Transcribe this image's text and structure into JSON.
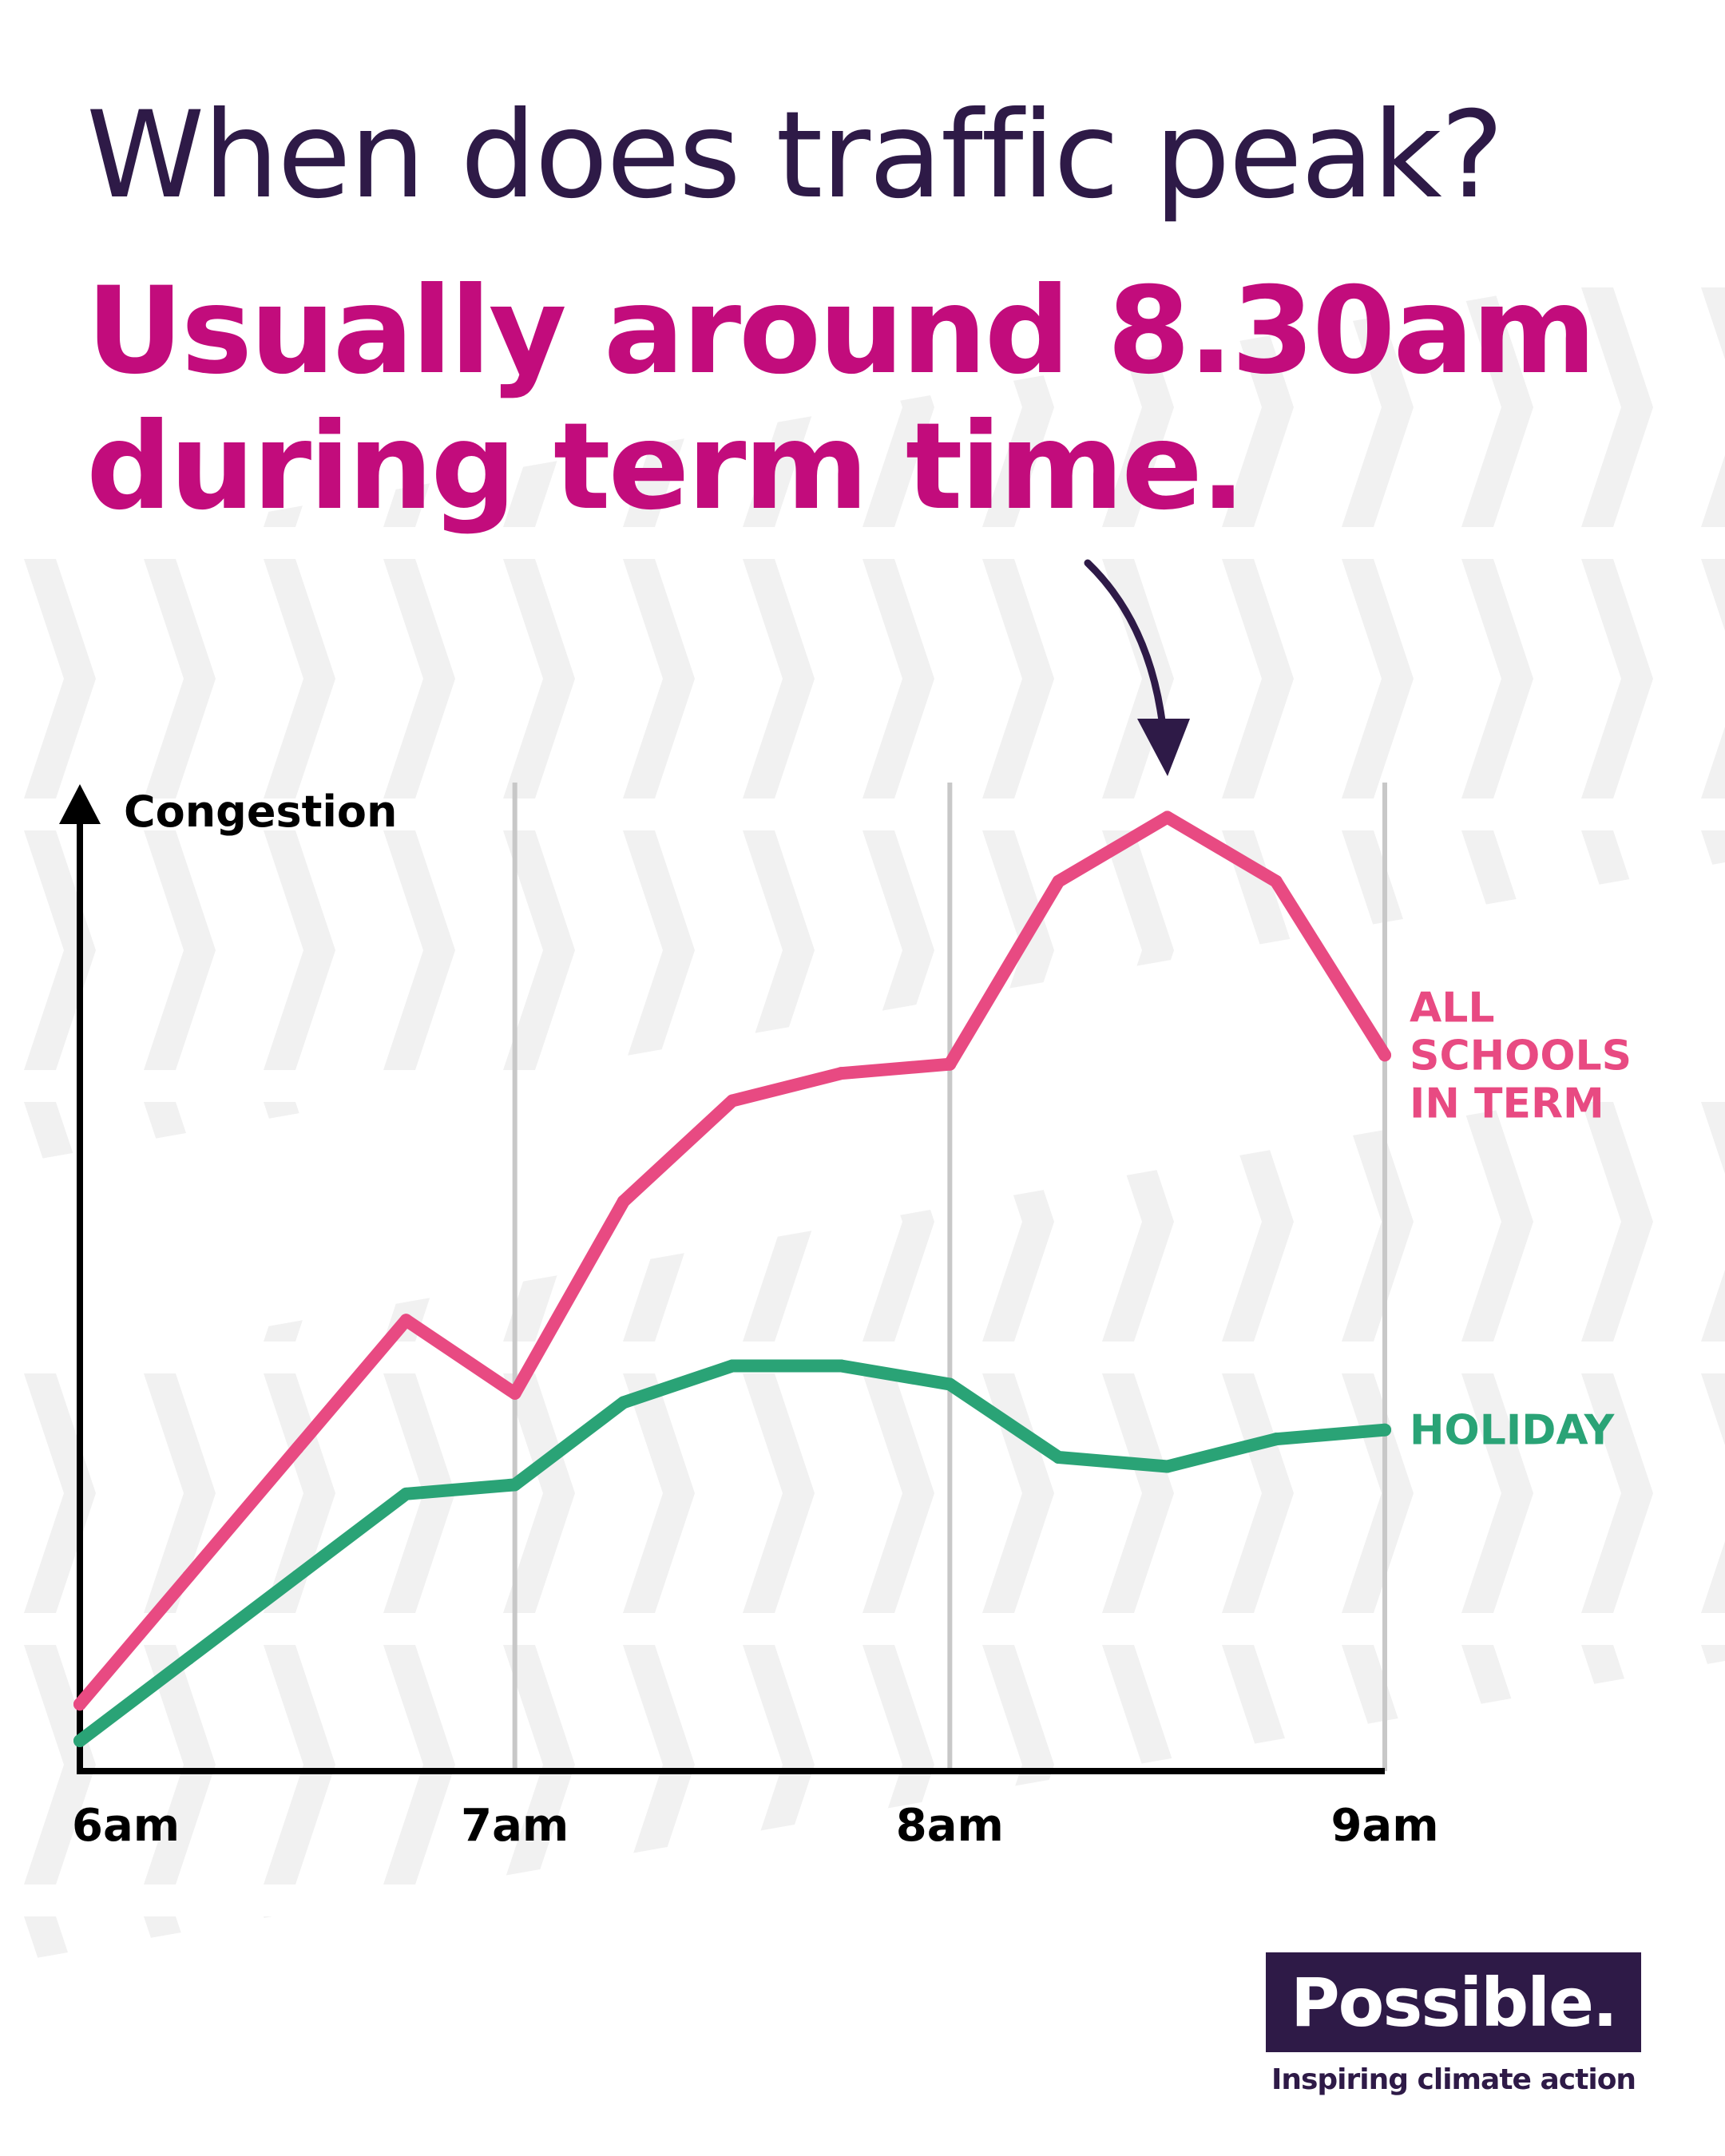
{
  "header": {
    "title": "When does traffic peak?",
    "subtitle": "Usually around 8.30am during term time."
  },
  "chart_data": {
    "type": "line",
    "ylabel": "Congestion",
    "xlabel": "",
    "x_ticks": [
      "6am",
      "7am",
      "8am",
      "9am"
    ],
    "x": [
      6.0,
      6.25,
      6.5,
      6.75,
      7.0,
      7.25,
      7.5,
      7.75,
      8.0,
      8.25,
      8.5,
      8.75,
      9.0
    ],
    "xlim": [
      6.0,
      9.0
    ],
    "ylim": [
      0,
      100
    ],
    "grid": "vertical at tick positions",
    "series": [
      {
        "name": "ALL SCHOOLS IN TERM",
        "color": "#e84a82",
        "values": [
          4,
          18,
          32,
          46,
          38,
          59,
          70,
          73,
          74,
          94,
          101,
          94,
          75
        ]
      },
      {
        "name": "HOLIDAY",
        "color": "#2aa376",
        "values": [
          0,
          9,
          18,
          27,
          28,
          37,
          41,
          41,
          39,
          31,
          30,
          33,
          34
        ]
      }
    ],
    "annotation": {
      "type": "arrow",
      "points_to_x": 8.5,
      "series": "ALL SCHOOLS IN TERM"
    }
  },
  "logo": {
    "name": "Possible.",
    "tagline": "Inspiring climate action"
  },
  "colors": {
    "title": "#2e1a47",
    "subtitle": "#c20c7c",
    "term_line": "#e84a82",
    "holiday_line": "#2aa376",
    "grid": "#c8c8c8",
    "logo_bg": "#2e1a47"
  }
}
